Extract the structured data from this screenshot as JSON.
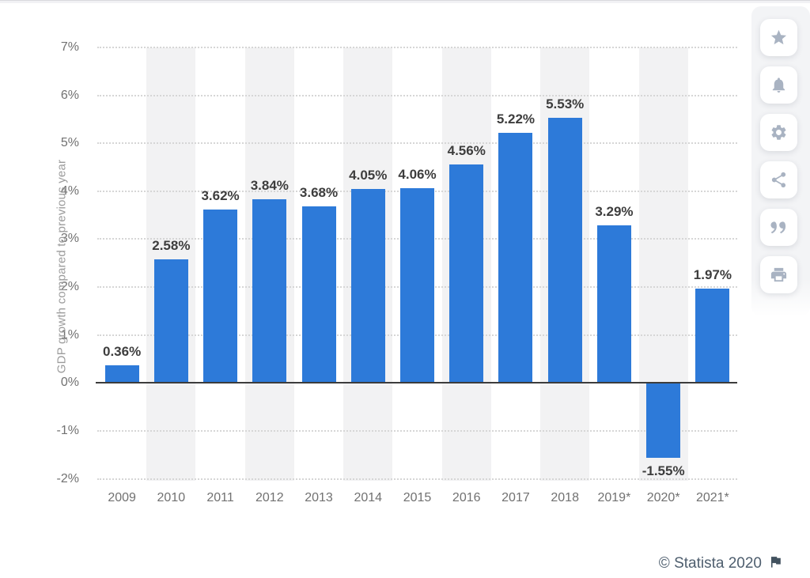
{
  "chart_data": {
    "type": "bar",
    "title": "",
    "xlabel": "",
    "ylabel": "GDP growth compared to previous year",
    "categories": [
      "2009",
      "2010",
      "2011",
      "2012",
      "2013",
      "2014",
      "2015",
      "2016",
      "2017",
      "2018",
      "2019*",
      "2020*",
      "2021*"
    ],
    "values": [
      0.36,
      2.58,
      3.62,
      3.84,
      3.68,
      4.05,
      4.06,
      4.56,
      5.22,
      5.53,
      3.29,
      -1.55,
      1.97
    ],
    "data_labels": [
      "0.36%",
      "2.58%",
      "3.62%",
      "3.84%",
      "3.68%",
      "4.05%",
      "4.06%",
      "4.56%",
      "5.22%",
      "5.53%",
      "3.29%",
      "-1.55%",
      "1.97%"
    ],
    "ytick_values": [
      7,
      6,
      5,
      4,
      3,
      2,
      1,
      0,
      -1,
      -2
    ],
    "ytick_labels": [
      "7%",
      "6%",
      "5%",
      "4%",
      "3%",
      "2%",
      "1%",
      "0%",
      "-1%",
      "-2%"
    ],
    "ylim": [
      -2,
      7
    ],
    "grid": "horizontal dotted",
    "legend": "none",
    "plot_bands": "alternating vertical stripes behind every second category",
    "colors": {
      "bar": "#2d7ad9",
      "stripe": "#f2f2f3",
      "grid": "#d6d6d6",
      "zero_line": "#3c3c3c",
      "tick_label": "#717171",
      "value_label": "#3d3d3d",
      "axis_title": "#9b9b9b"
    }
  },
  "sidebar": {
    "icon_color": "#a9b3c2",
    "buttons": [
      {
        "name": "favorite-button",
        "icon": "star-icon"
      },
      {
        "name": "notifications-button",
        "icon": "bell-icon"
      },
      {
        "name": "settings-button",
        "icon": "gear-icon"
      },
      {
        "name": "share-button",
        "icon": "share-icon"
      },
      {
        "name": "cite-button",
        "icon": "quote-icon"
      },
      {
        "name": "print-button",
        "icon": "print-icon"
      }
    ]
  },
  "footer": {
    "copyright": "© Statista 2020",
    "flag_icon": "flag-icon",
    "flag_color": "#42525f"
  }
}
